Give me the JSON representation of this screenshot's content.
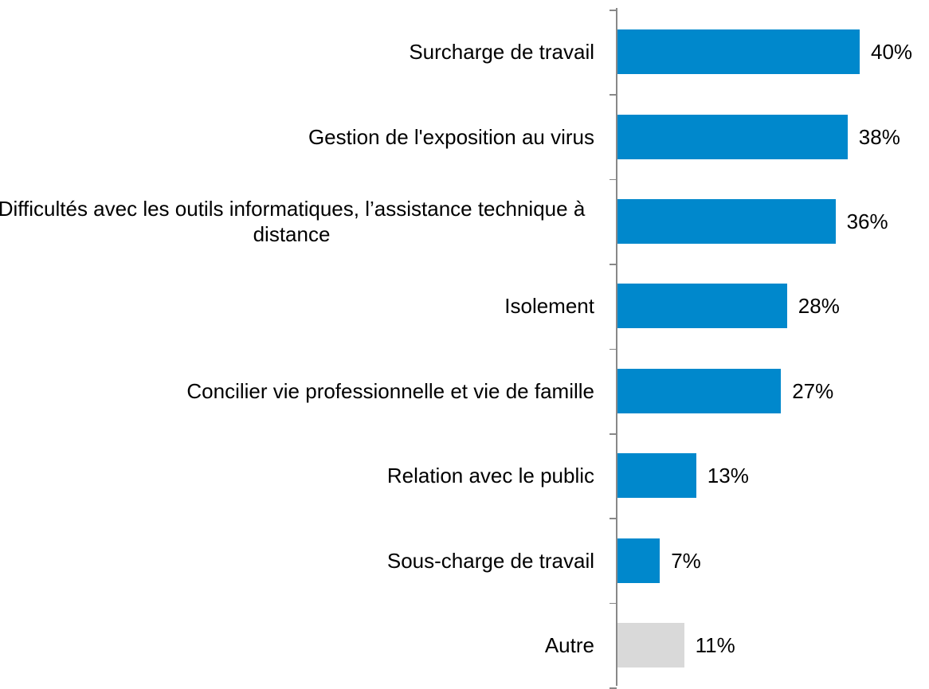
{
  "chart_data": {
    "type": "bar",
    "orientation": "horizontal",
    "categories": [
      "Surcharge de travail",
      "Gestion de l'exposition au virus",
      "Difficultés avec les outils informatiques, l’assistance technique à distance",
      "Isolement",
      "Concilier vie professionnelle et vie de famille",
      "Relation avec le public",
      "Sous-charge de travail",
      "Autre"
    ],
    "values": [
      40,
      38,
      36,
      28,
      27,
      13,
      7,
      11
    ],
    "value_labels": [
      "40%",
      "38%",
      "36%",
      "28%",
      "27%",
      "13%",
      "7%",
      "11%"
    ],
    "colors": [
      "#0088cc",
      "#0088cc",
      "#0088cc",
      "#0088cc",
      "#0088cc",
      "#0088cc",
      "#0088cc",
      "#d9d9d9"
    ]
  }
}
